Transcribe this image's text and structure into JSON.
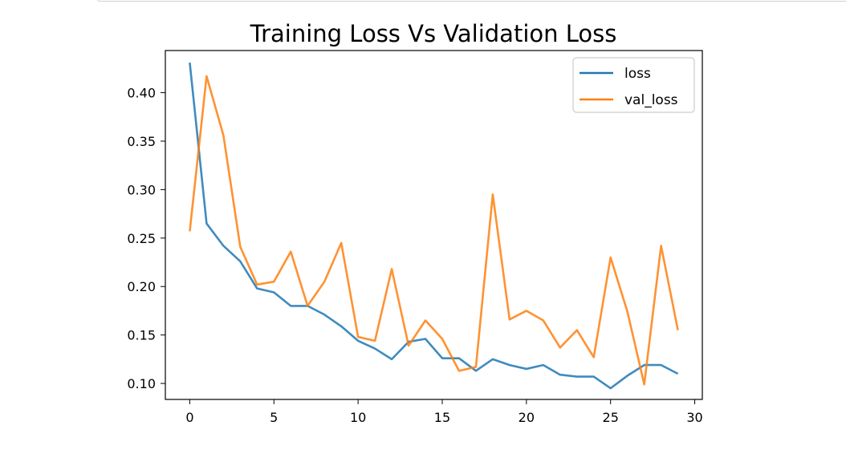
{
  "chart_data": {
    "type": "line",
    "title": "Training Loss Vs Validation Loss",
    "xlabel": "",
    "ylabel": "",
    "xlim": [
      -1.45,
      30.45
    ],
    "ylim": [
      0.0835,
      0.4435
    ],
    "xticks": [
      0,
      5,
      10,
      15,
      20,
      25,
      30
    ],
    "yticks": [
      0.1,
      0.15,
      0.2,
      0.25,
      0.3,
      0.35,
      0.4
    ],
    "ytick_labels": [
      "0.10",
      "0.15",
      "0.20",
      "0.25",
      "0.30",
      "0.35",
      "0.40"
    ],
    "grid": false,
    "legend_position": "upper right",
    "x": [
      0,
      1,
      2,
      3,
      4,
      5,
      6,
      7,
      8,
      9,
      10,
      11,
      12,
      13,
      14,
      15,
      16,
      17,
      18,
      19,
      20,
      21,
      22,
      23,
      24,
      25,
      26,
      27,
      28,
      29
    ],
    "series": [
      {
        "name": "loss",
        "color": "#1f77b4",
        "values": [
          0.431,
          0.265,
          0.242,
          0.226,
          0.198,
          0.194,
          0.18,
          0.18,
          0.171,
          0.159,
          0.144,
          0.136,
          0.125,
          0.143,
          0.146,
          0.126,
          0.126,
          0.113,
          0.125,
          0.119,
          0.115,
          0.119,
          0.109,
          0.107,
          0.107,
          0.095,
          0.108,
          0.119,
          0.119,
          0.11
        ]
      },
      {
        "name": "val_loss",
        "color": "#ff7f0e",
        "values": [
          0.257,
          0.417,
          0.356,
          0.241,
          0.202,
          0.205,
          0.236,
          0.18,
          0.205,
          0.245,
          0.148,
          0.144,
          0.218,
          0.139,
          0.165,
          0.146,
          0.113,
          0.117,
          0.295,
          0.166,
          0.175,
          0.165,
          0.137,
          0.155,
          0.127,
          0.23,
          0.174,
          0.099,
          0.242,
          0.155
        ]
      }
    ]
  }
}
